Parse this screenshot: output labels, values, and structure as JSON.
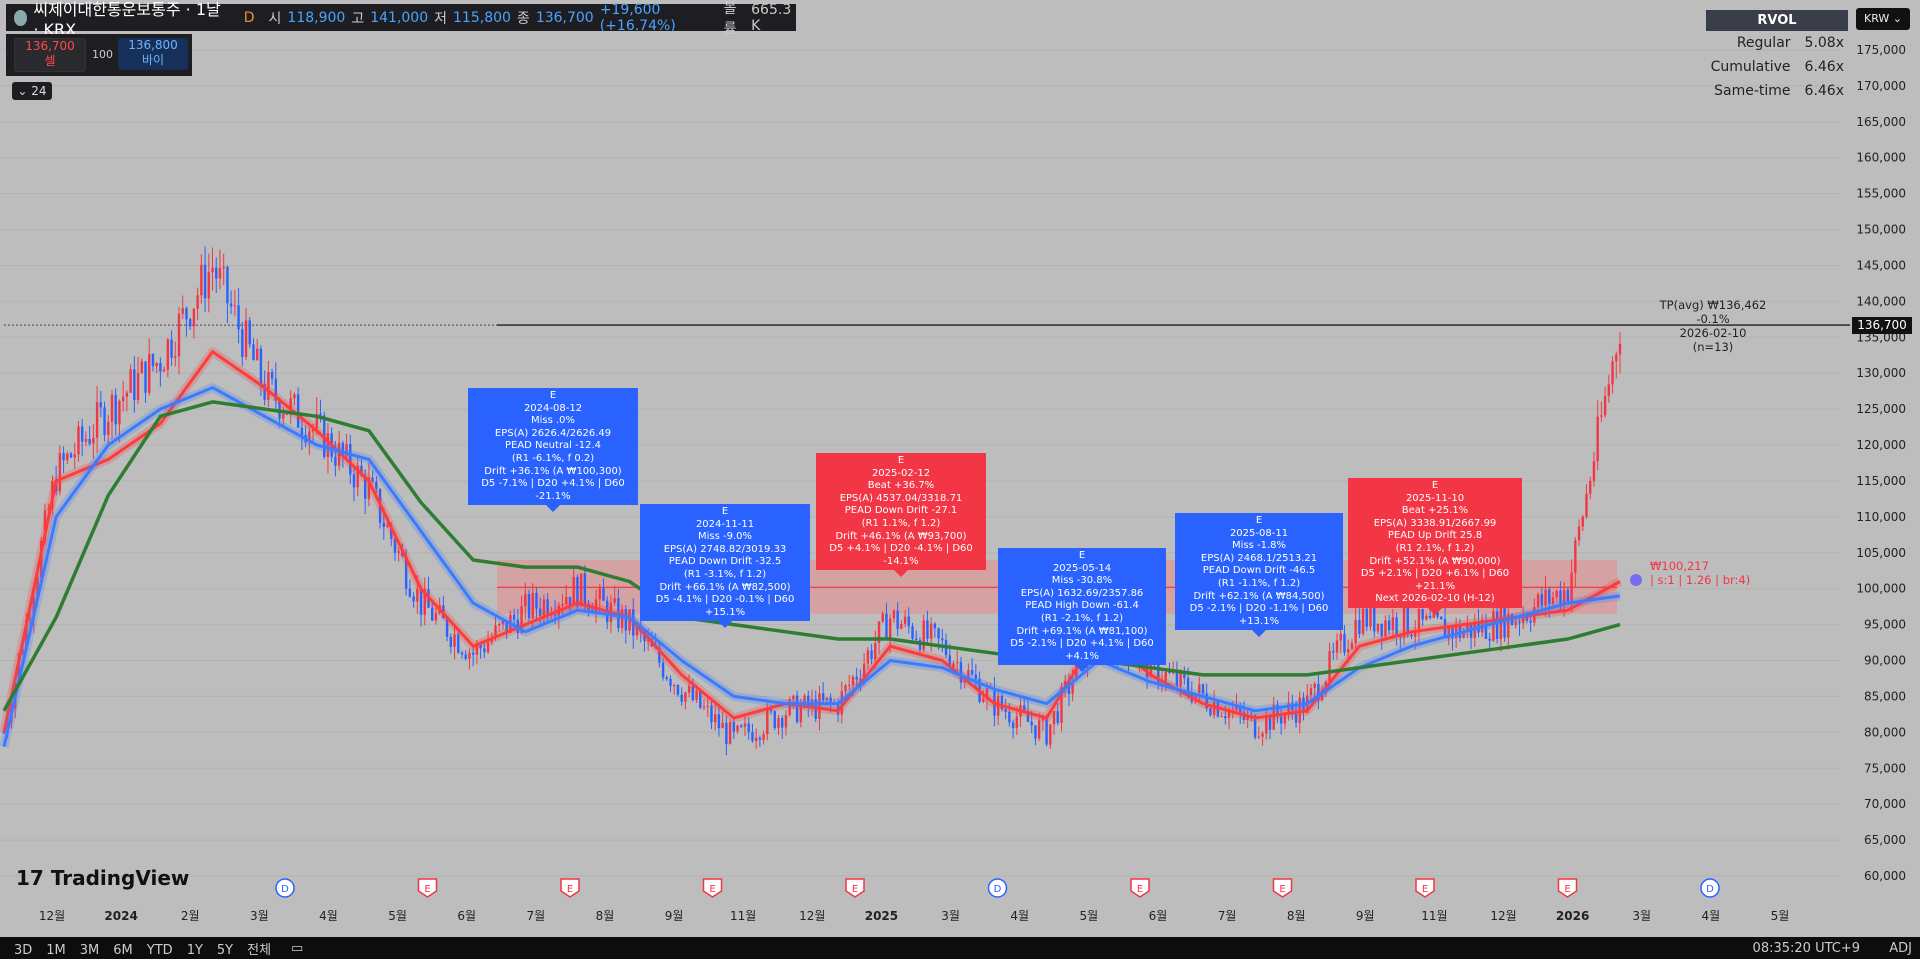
{
  "header": {
    "symbol": "씨제이대한통운보통주 · 1날 · KRX",
    "interval_flag": "D",
    "open_label": "시",
    "open": "118,900",
    "high_label": "고",
    "high": "141,000",
    "low_label": "저",
    "low": "115,800",
    "close_label": "종",
    "close": "136,700",
    "change": "+19,600 (+16.74%)",
    "volume_label": "볼륨",
    "volume": "665.3 K"
  },
  "trade": {
    "sell_price": "136,700",
    "sell_label": "셀",
    "qty": "100",
    "buy_price": "136,800",
    "buy_label": "바이"
  },
  "collapse_label": "24",
  "rvol": {
    "title": "RVOL",
    "rows": [
      {
        "label": "Regular",
        "value": "5.08x"
      },
      {
        "label": "Cumulative",
        "value": "6.46x"
      },
      {
        "label": "Same-time",
        "value": "6.46x"
      }
    ]
  },
  "currency": "KRW",
  "price_axis": [
    "175,000",
    "170,000",
    "165,000",
    "160,000",
    "155,000",
    "150,000",
    "145,000",
    "140,000",
    "135,000",
    "130,000",
    "125,000",
    "120,000",
    "115,000",
    "110,000",
    "105,000",
    "100,000",
    "95,000",
    "90,000",
    "85,000",
    "80,000",
    "75,000",
    "70,000",
    "65,000",
    "60,000"
  ],
  "last_price_tag": "136,700",
  "tp": {
    "line1": "TP(avg) ₩136,462",
    "line2": "-0.1%",
    "line3": "2026-02-10",
    "line4": "(n=13)"
  },
  "zone_label": {
    "line1": "₩100,217",
    "line2": "| s:1 | 1.26 | br:4)"
  },
  "earnings": [
    {
      "color": "blue",
      "lines": [
        "E",
        "2024-08-12",
        "Miss .0%",
        "EPS(A) 2626.4/2626.49",
        "PEAD Neutral -12.4",
        "(R1 -6.1%, f 0.2)",
        "Drift +36.1% (A ₩100,300)",
        "D5 -7.1% | D20 +4.1% | D60 -21.1%"
      ]
    },
    {
      "color": "blue",
      "lines": [
        "E",
        "2024-11-11",
        "Miss -9.0%",
        "EPS(A) 2748.82/3019.33",
        "PEAD Down Drift -32.5",
        "(R1 -3.1%, f 1.2)",
        "Drift +66.1% (A ₩82,500)",
        "D5 -4.1% | D20 -0.1% | D60 +15.1%"
      ]
    },
    {
      "color": "red",
      "lines": [
        "E",
        "2025-02-12",
        "Beat +36.7%",
        "EPS(A) 4537.04/3318.71",
        "PEAD Down Drift -27.1",
        "(R1 1.1%, f 1.2)",
        "Drift +46.1% (A ₩93,700)",
        "D5 +4.1% | D20 -4.1% | D60 -14.1%"
      ]
    },
    {
      "color": "blue",
      "lines": [
        "E",
        "2025-05-14",
        "Miss -30.8%",
        "EPS(A) 1632.69/2357.86",
        "PEAD High Down -61.4",
        "(R1 -2.1%, f 1.2)",
        "Drift +69.1% (A ₩81,100)",
        "D5 -2.1% | D20 +4.1% | D60 +4.1%"
      ]
    },
    {
      "color": "blue",
      "lines": [
        "E",
        "2025-08-11",
        "Miss -1.8%",
        "EPS(A) 2468.1/2513.21",
        "PEAD Down Drift -46.5",
        "(R1 -1.1%, f 1.2)",
        "Drift +62.1% (A ₩84,500)",
        "D5 -2.1% | D20 -1.1% | D60 +13.1%"
      ]
    },
    {
      "color": "red",
      "lines": [
        "E",
        "2025-11-10",
        "Beat +25.1%",
        "EPS(A) 3338.91/2667.99",
        "PEAD Up Drift 25.8",
        "(R1 2.1%, f 1.2)",
        "Drift +52.1% (A ₩90,000)",
        "D5 +2.1% | D20 +6.1% | D60 +21.1%",
        "Next 2026-02-10 (H-12)"
      ]
    }
  ],
  "time_axis": [
    "12월",
    "2024",
    "2월",
    "3월",
    "4월",
    "5월",
    "6월",
    "7월",
    "8월",
    "9월",
    "11월",
    "12월",
    "2025",
    "3월",
    "4월",
    "5월",
    "6월",
    "7월",
    "8월",
    "9월",
    "11월",
    "12월",
    "2026",
    "3월",
    "4월",
    "5월"
  ],
  "event_badges": [
    "D",
    "E",
    "E",
    "E",
    "E",
    "D",
    "E",
    "E",
    "E",
    "E",
    "D"
  ],
  "bottom": {
    "timeframes": [
      "3D",
      "1M",
      "3M",
      "6M",
      "YTD",
      "1Y",
      "5Y",
      "전체"
    ],
    "time": "08:35:20 UTC+9",
    "adj": "ADJ"
  },
  "branding": "TradingView",
  "colors": {
    "up": "#f23645",
    "down": "#2962ff",
    "ma_red": "#ff3b3b",
    "ma_blue": "#3b7bff",
    "ma_green": "#2e7d32",
    "zone": "#e88c8c",
    "background": "#bdbdbd"
  },
  "chart_data": {
    "type": "line",
    "ylim": [
      60000,
      175000
    ],
    "series": [
      {
        "values": [
          80000,
          115000,
          118000,
          123000,
          133000,
          128000,
          122000,
          115000,
          100000,
          92000,
          95000,
          98000,
          96000,
          88000,
          82000,
          84000,
          83000,
          92000,
          90000,
          84000,
          82000,
          94000,
          88000,
          84000,
          82000,
          83000,
          92000,
          94000,
          95000,
          96000,
          97000,
          101000
        ]
      },
      {
        "values": [
          78000,
          110000,
          120000,
          125000,
          128000,
          124000,
          120000,
          118000,
          108000,
          98000,
          94000,
          97000,
          96000,
          90000,
          85000,
          84000,
          84000,
          90000,
          89000,
          86000,
          84000,
          90000,
          87000,
          85000,
          83000,
          84000,
          89000,
          92000,
          94000,
          96000,
          98000,
          99000
        ]
      },
      {
        "values": [
          83000,
          96000,
          113000,
          124000,
          126000,
          125000,
          124000,
          122000,
          112000,
          104000,
          103000,
          103000,
          101000,
          96000,
          95000,
          94000,
          93000,
          93000,
          92000,
          91000,
          90000,
          90000,
          89000,
          88000,
          88000,
          88000,
          89000,
          90000,
          91000,
          92000,
          93000,
          95000
        ]
      }
    ],
    "close": [
      80000,
      116000,
      125000,
      132000,
      145000,
      128000,
      122000,
      114000,
      98000,
      91000,
      97000,
      100000,
      95000,
      86000,
      79000,
      83000,
      84000,
      96000,
      92000,
      84000,
      80000,
      95000,
      89000,
      85000,
      81000,
      84000,
      96000,
      95000,
      94000,
      96000,
      100000,
      136700
    ]
  }
}
